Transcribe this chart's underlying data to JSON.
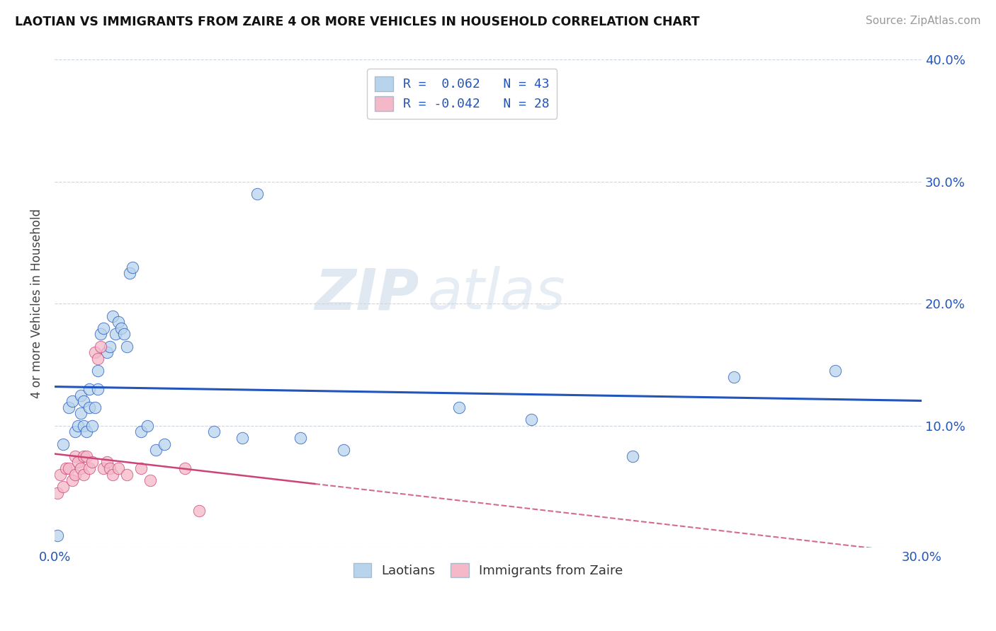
{
  "title": "LAOTIAN VS IMMIGRANTS FROM ZAIRE 4 OR MORE VEHICLES IN HOUSEHOLD CORRELATION CHART",
  "source": "Source: ZipAtlas.com",
  "ylabel": "4 or more Vehicles in Household",
  "xmin": 0.0,
  "xmax": 0.3,
  "ymin": 0.0,
  "ymax": 0.4,
  "color_blue": "#b8d4ec",
  "color_pink": "#f4b8c8",
  "line_blue": "#2255bb",
  "line_pink": "#cc4477",
  "watermark_zip": "ZIP",
  "watermark_atlas": "atlas",
  "legend_r1_label": "R =  0.062   N = 43",
  "legend_r2_label": "R = -0.042   N = 28",
  "laotian_x": [
    0.001,
    0.003,
    0.005,
    0.006,
    0.007,
    0.008,
    0.009,
    0.009,
    0.01,
    0.01,
    0.011,
    0.012,
    0.012,
    0.013,
    0.014,
    0.015,
    0.015,
    0.016,
    0.017,
    0.018,
    0.019,
    0.02,
    0.021,
    0.022,
    0.023,
    0.024,
    0.025,
    0.026,
    0.027,
    0.03,
    0.032,
    0.035,
    0.038,
    0.055,
    0.065,
    0.07,
    0.085,
    0.1,
    0.14,
    0.165,
    0.2,
    0.235,
    0.27
  ],
  "laotian_y": [
    0.01,
    0.085,
    0.115,
    0.12,
    0.095,
    0.1,
    0.11,
    0.125,
    0.1,
    0.12,
    0.095,
    0.115,
    0.13,
    0.1,
    0.115,
    0.13,
    0.145,
    0.175,
    0.18,
    0.16,
    0.165,
    0.19,
    0.175,
    0.185,
    0.18,
    0.175,
    0.165,
    0.225,
    0.23,
    0.095,
    0.1,
    0.08,
    0.085,
    0.095,
    0.09,
    0.29,
    0.09,
    0.08,
    0.115,
    0.105,
    0.075,
    0.14,
    0.145
  ],
  "zaire_x": [
    0.001,
    0.002,
    0.003,
    0.004,
    0.005,
    0.006,
    0.007,
    0.007,
    0.008,
    0.009,
    0.01,
    0.01,
    0.011,
    0.012,
    0.013,
    0.014,
    0.015,
    0.016,
    0.017,
    0.018,
    0.019,
    0.02,
    0.022,
    0.025,
    0.03,
    0.033,
    0.045,
    0.05
  ],
  "zaire_y": [
    0.045,
    0.06,
    0.05,
    0.065,
    0.065,
    0.055,
    0.06,
    0.075,
    0.07,
    0.065,
    0.06,
    0.075,
    0.075,
    0.065,
    0.07,
    0.16,
    0.155,
    0.165,
    0.065,
    0.07,
    0.065,
    0.06,
    0.065,
    0.06,
    0.065,
    0.055,
    0.065,
    0.03
  ]
}
